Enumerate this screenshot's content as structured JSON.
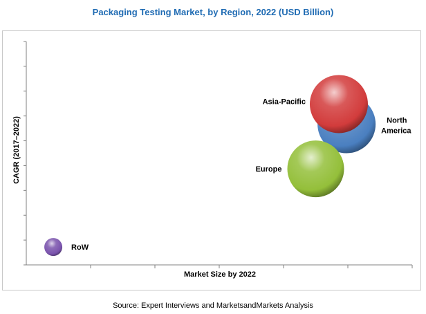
{
  "chart_data": {
    "type": "scatter",
    "title": "Packaging Testing Market, by Region, 2022 (USD Billion)",
    "xlabel": "Market Size by 2022",
    "ylabel": "CAGR (2017–2022)",
    "xlim": [
      0,
      10
    ],
    "ylim": [
      0,
      10
    ],
    "grid": false,
    "series": [
      {
        "name": "North America",
        "x": 8.3,
        "y": 6.3,
        "size": 42,
        "color": "#4a7fc0"
      },
      {
        "name": "Asia-Pacific",
        "x": 8.1,
        "y": 7.2,
        "size": 42,
        "color": "#d23c3c"
      },
      {
        "name": "Europe",
        "x": 7.5,
        "y": 4.3,
        "size": 41,
        "color": "#94bf3a"
      },
      {
        "name": "RoW",
        "x": 0.7,
        "y": 0.8,
        "size": 13,
        "color": "#7a53ad"
      }
    ]
  },
  "source": "Source: Expert Interviews and MarketsandMarkets Analysis"
}
